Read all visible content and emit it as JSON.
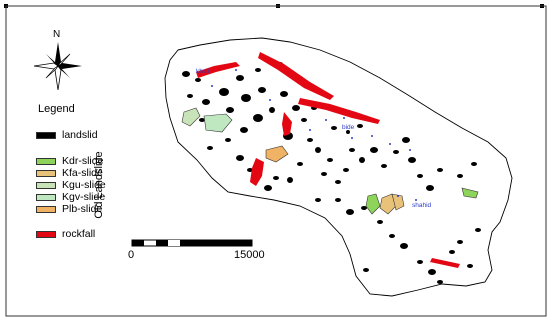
{
  "north": {
    "label": "N"
  },
  "legend": {
    "title": "Legend",
    "items": [
      {
        "label": "landslid",
        "color": "#000000"
      },
      {
        "label": "Kdr-slide",
        "color": "#8fd45a"
      },
      {
        "label": "Kfa-slide",
        "color": "#e9c27a"
      },
      {
        "label": "Kgu-slide",
        "color": "#c9e3b8"
      },
      {
        "label": "Kgv-slide",
        "color": "#bfe8c0"
      },
      {
        "label": "Plb-slide",
        "color": "#f0b265"
      },
      {
        "label": "rockfall",
        "color": "#e30613"
      }
    ]
  },
  "side_label": "Old Landslide",
  "scale_bar": {
    "start_label": "0",
    "end_label": "15000"
  },
  "place_labels": [
    "khali",
    "bide",
    "shahid"
  ],
  "colors": {
    "basin_outline": "#000000",
    "basin_fill": "#ffffff",
    "place_text": "#2b3ccc"
  }
}
